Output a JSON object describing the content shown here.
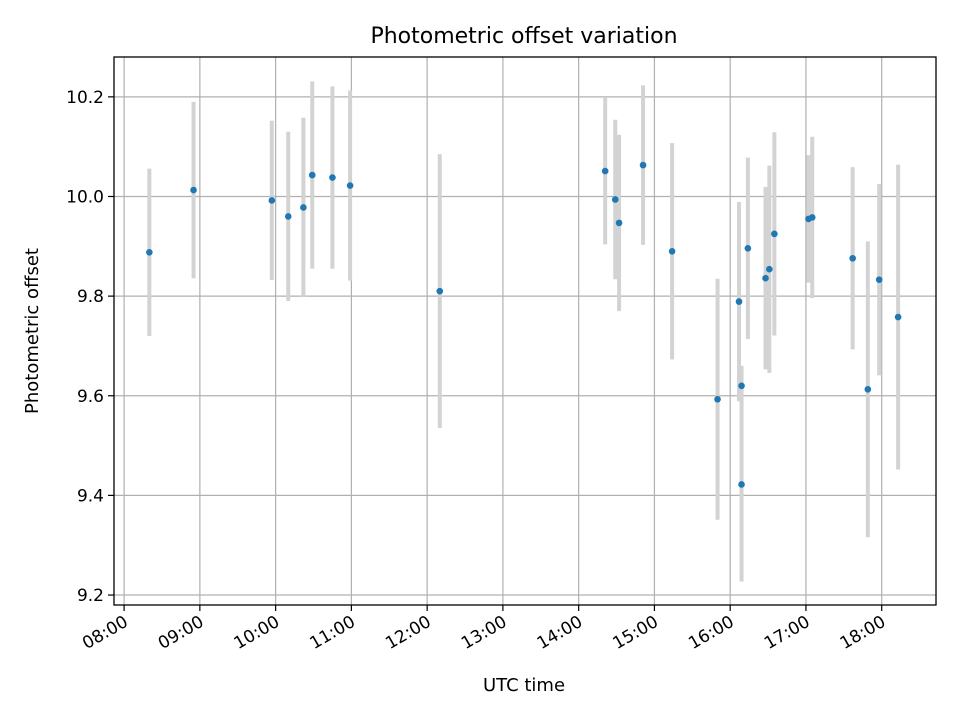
{
  "chart_data": {
    "type": "scatter",
    "title": "Photometric offset variation",
    "xlabel": "UTC time",
    "ylabel": "Photometric offset",
    "x_tick_labels": [
      "08:00",
      "09:00",
      "10:00",
      "11:00",
      "12:00",
      "13:00",
      "14:00",
      "15:00",
      "16:00",
      "17:00",
      "18:00"
    ],
    "y_tick_labels": [
      "9.2",
      "9.4",
      "9.6",
      "9.8",
      "10.0",
      "10.2"
    ],
    "xlim": [
      "07:52",
      "18:43"
    ],
    "ylim": [
      9.18,
      10.28
    ],
    "grid": true,
    "colors": {
      "points": "#1f77b4",
      "error_bars": "#d3d3d3",
      "grid": "#b0b0b0"
    },
    "series": [
      {
        "x": [
          "08:20",
          "08:55",
          "09:57",
          "10:10",
          "10:22",
          "10:29",
          "10:45",
          "10:59",
          "12:10",
          "14:21",
          "14:29",
          "14:32",
          "14:51",
          "15:14",
          "15:50",
          "16:07",
          "16:09",
          "16:09",
          "16:14",
          "16:28",
          "16:31",
          "16:35",
          "17:02",
          "17:05",
          "17:37",
          "17:49",
          "17:58",
          "18:13"
        ],
        "y": [
          9.888,
          10.013,
          9.992,
          9.96,
          9.978,
          10.043,
          10.038,
          10.022,
          9.81,
          10.051,
          9.994,
          9.947,
          10.063,
          9.89,
          9.593,
          9.789,
          9.62,
          9.422,
          9.896,
          9.836,
          9.854,
          9.925,
          9.955,
          9.958,
          9.876,
          9.613,
          9.833,
          9.758
        ],
        "err": [
          0.168,
          0.177,
          0.16,
          0.17,
          0.18,
          0.188,
          0.183,
          0.191,
          0.275,
          0.147,
          0.16,
          0.177,
          0.16,
          0.217,
          0.242,
          0.2,
          0.04,
          0.195,
          0.182,
          0.183,
          0.208,
          0.204,
          0.128,
          0.162,
          0.183,
          0.297,
          0.192,
          0.306
        ]
      }
    ]
  }
}
